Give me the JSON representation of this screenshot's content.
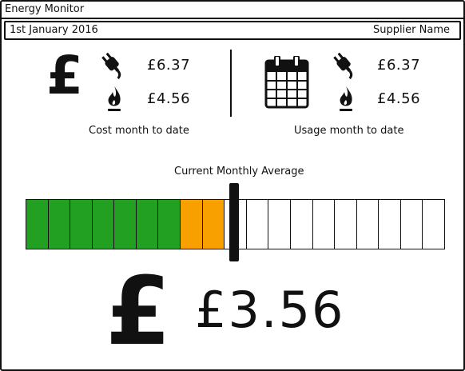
{
  "window": {
    "title": "Energy Monitor"
  },
  "info": {
    "date": "1st January 2016",
    "supplier": "Supplier Name"
  },
  "cost": {
    "currency_symbol": "£",
    "electricity": "£6.37",
    "gas": "£4.56",
    "caption": "Cost month to date",
    "icons": [
      "pound-icon",
      "plug-icon",
      "flame-icon"
    ]
  },
  "usage": {
    "electricity": "£6.37",
    "gas": "£4.56",
    "caption": "Usage month to date",
    "icons": [
      "calendar-icon",
      "plug-icon",
      "flame-icon"
    ]
  },
  "gauge": {
    "label": "Current Monthly Average",
    "segments": 19,
    "green_segments": 7,
    "orange_segments": 2,
    "level_fraction": 0.487,
    "colors": {
      "green": "#22a022",
      "orange": "#f7a000",
      "empty": "#ffffff"
    }
  },
  "average": {
    "currency_symbol": "£",
    "value": "£3.56"
  }
}
